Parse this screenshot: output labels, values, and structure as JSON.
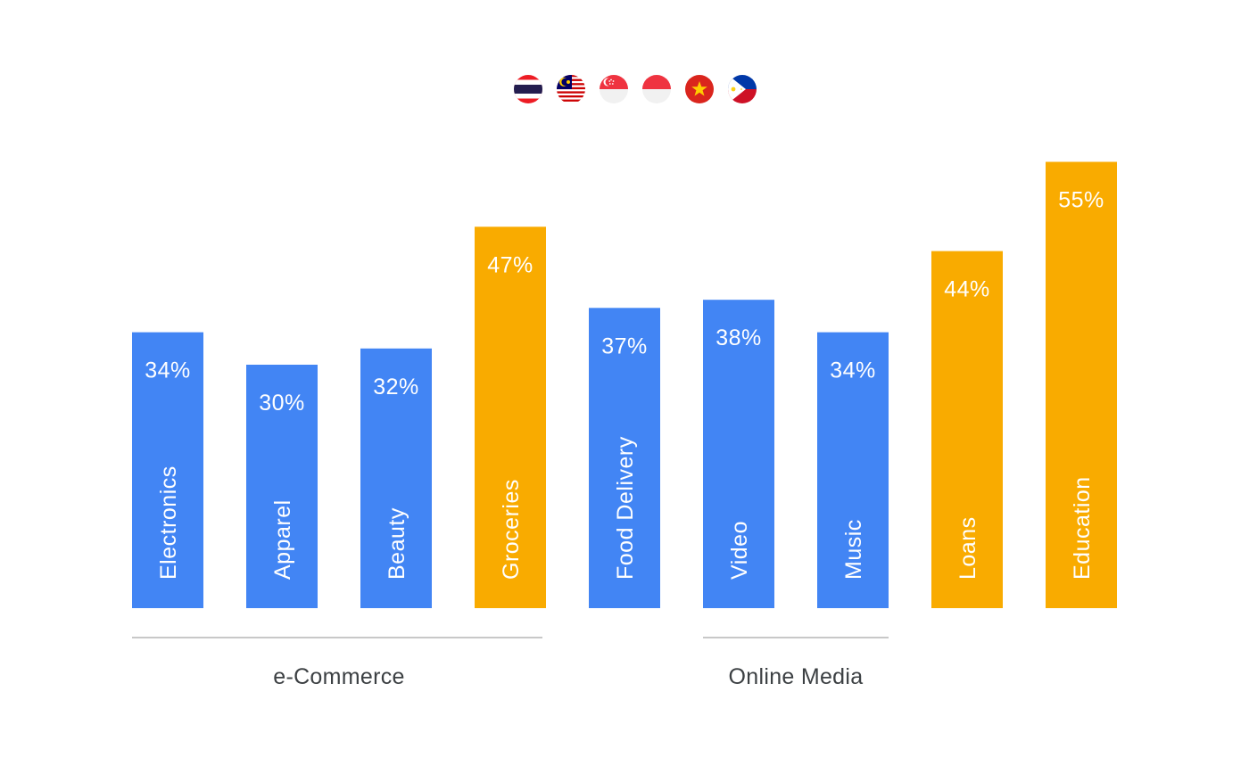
{
  "flags": [
    {
      "icon": "thailand-flag-icon"
    },
    {
      "icon": "malaysia-flag-icon"
    },
    {
      "icon": "singapore-flag-icon"
    },
    {
      "icon": "indonesia-flag-icon"
    },
    {
      "icon": "vietnam-flag-icon"
    },
    {
      "icon": "philippines-flag-icon"
    }
  ],
  "colors": {
    "blue": "#4285F4",
    "orange": "#F9AB00",
    "group_line": "#c8c8c8",
    "group_text": "#3c4043"
  },
  "chart_data": {
    "type": "bar",
    "categories": [
      "Electronics",
      "Apparel",
      "Beauty",
      "Groceries",
      "Food Delivery",
      "Video",
      "Music",
      "Loans",
      "Education"
    ],
    "values": [
      34,
      30,
      32,
      47,
      37,
      38,
      34,
      44,
      55
    ],
    "value_labels": [
      "34%",
      "30%",
      "32%",
      "47%",
      "37%",
      "38%",
      "34%",
      "44%",
      "55%"
    ],
    "bar_colors": [
      "#4285F4",
      "#4285F4",
      "#4285F4",
      "#F9AB00",
      "#4285F4",
      "#4285F4",
      "#4285F4",
      "#F9AB00",
      "#F9AB00"
    ],
    "unit": "%",
    "groups": [
      {
        "label": "e-Commerce",
        "first": 0,
        "last": 3
      },
      {
        "label": "Online Media",
        "first": 5,
        "last": 6
      }
    ],
    "title": "",
    "xlabel": "",
    "ylabel": "",
    "grid": false,
    "legend": "none"
  }
}
